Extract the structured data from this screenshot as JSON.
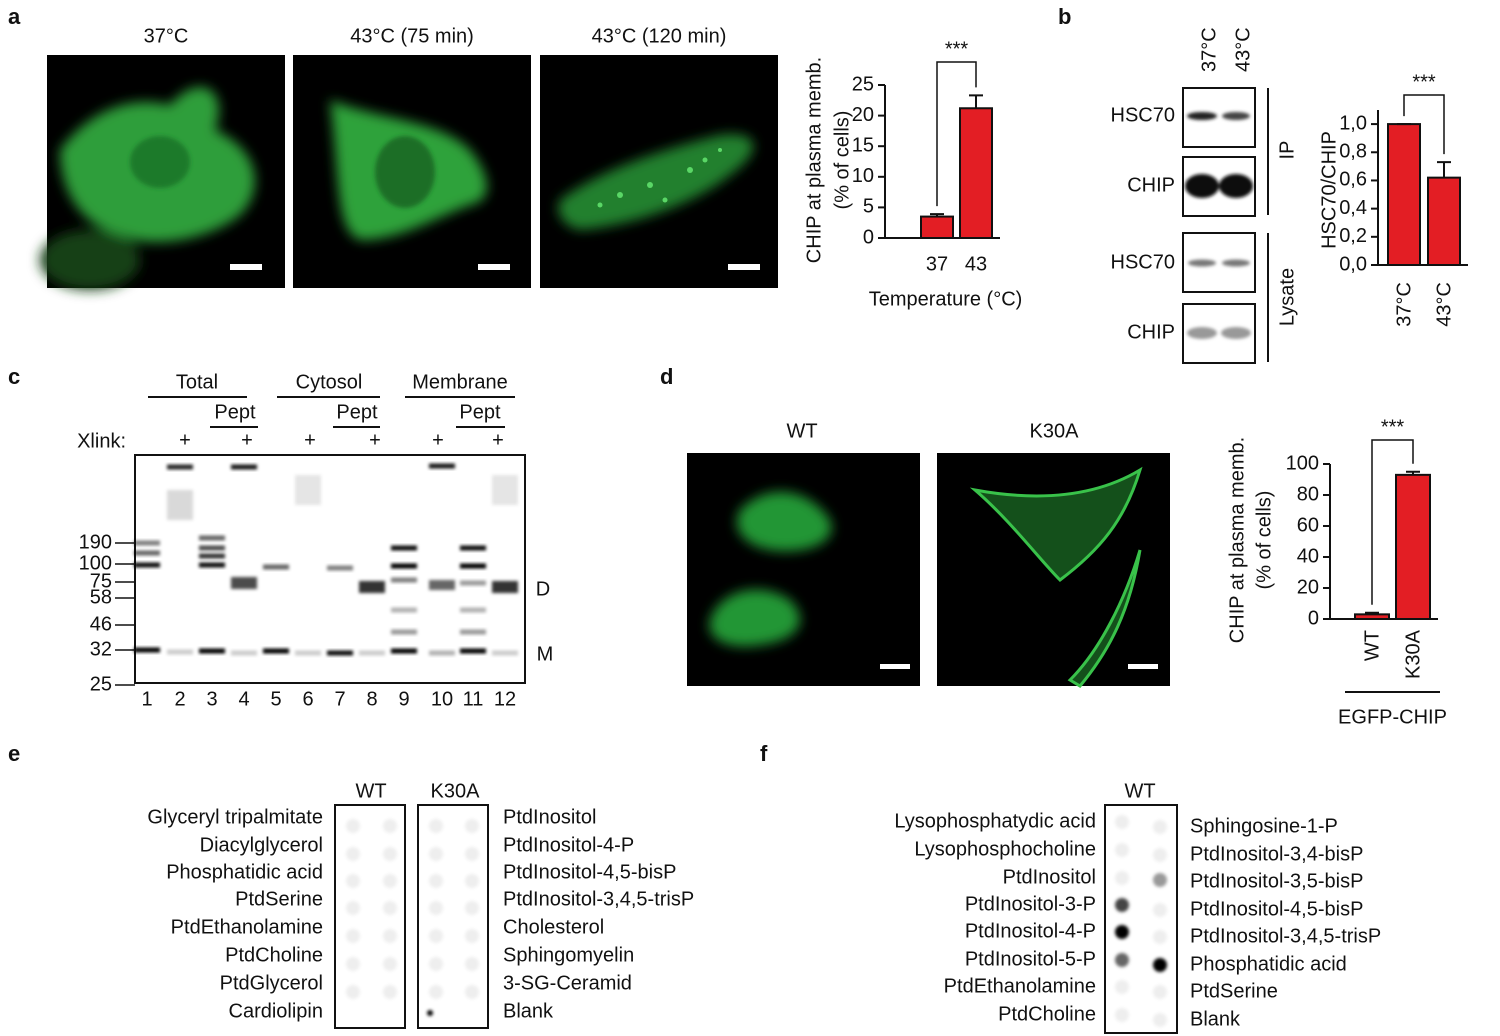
{
  "panel_labels": [
    "a",
    "b",
    "c",
    "d",
    "e",
    "f"
  ],
  "a": {
    "image_titles": [
      "37°C",
      "43°C (75 min)",
      "43°C (120 min)"
    ]
  },
  "b": {
    "lanes": [
      "37°C",
      "43°C"
    ],
    "blot_labels": [
      "HSC70",
      "CHIP",
      "HSC70",
      "CHIP"
    ],
    "groups": [
      "IP",
      "Lysate"
    ]
  },
  "c": {
    "groups": [
      "Total",
      "Cytosol",
      "Membrane"
    ],
    "sub_groups": [
      "Pept",
      "Pept",
      "Pept"
    ],
    "xlink_label": "Xlink:",
    "xlink_marks": [
      "+",
      "+",
      "+",
      "+",
      "+",
      "+"
    ],
    "markers": [
      190,
      100,
      75,
      58,
      46,
      32,
      25
    ],
    "lanes": [
      1,
      2,
      3,
      4,
      5,
      6,
      7,
      8,
      9,
      10,
      11,
      12
    ],
    "band_labels": [
      "D",
      "M"
    ]
  },
  "d": {
    "image_titles": [
      "WT",
      "K30A"
    ]
  },
  "e": {
    "columns": [
      "WT",
      "K30A"
    ],
    "left_labels": [
      "Glyceryl tripalmitate",
      "Diacylglycerol",
      "Phosphatidic acid",
      "PtdSerine",
      "PtdEthanolamine",
      "PtdCholine",
      "PtdGlycerol",
      "Cardiolipin"
    ],
    "right_labels": [
      "PtdInositol",
      "PtdInositol-4-P",
      "PtdInositol-4,5-bisP",
      "PtdInositol-3,4,5-trisP",
      "Cholesterol",
      "Sphingomyelin",
      "3-SG-Ceramid",
      "Blank"
    ]
  },
  "f": {
    "columns": [
      "WT"
    ],
    "left_labels": [
      "Lysophosphatydic acid",
      "Lysophosphocholine",
      "PtdInositol",
      "PtdInositol-3-P",
      "PtdInositol-4-P",
      "PtdInositol-5-P",
      "PtdEthanolamine",
      "PtdCholine"
    ],
    "right_labels": [
      "Sphingosine-1-P",
      "PtdInositol-3,4-bisP",
      "PtdInositol-3,5-bisP",
      "PtdInositol-4,5-bisP",
      "PtdInositol-3,4,5-trisP",
      "Phosphatidic acid",
      "PtdSerine",
      "Blank"
    ]
  },
  "chart_data": [
    {
      "type": "bar",
      "ylabel": [
        "CHIP at plasma memb.",
        "(% of cells)"
      ],
      "xlabel": "Temperature (°C)",
      "categories": [
        "37",
        "43"
      ],
      "values": [
        3.5,
        21.2
      ],
      "errors": [
        0.4,
        2.1
      ],
      "color": "#e31e24",
      "ylim": [
        0,
        25
      ],
      "yticks": [
        0,
        5,
        10,
        15,
        20,
        25
      ],
      "significance": "***"
    },
    {
      "type": "bar",
      "ylabel": [
        "HSC70/CHIP"
      ],
      "categories": [
        "37°C",
        "43°C"
      ],
      "values": [
        1.0,
        0.62
      ],
      "errors": [
        0,
        0.11
      ],
      "color": "#e31e24",
      "ylim": [
        0,
        1.1
      ],
      "yticks": [
        {
          "value": 0,
          "label": "0,0"
        },
        {
          "value": 0.2,
          "label": "0,2"
        },
        {
          "value": 0.4,
          "label": "0,4"
        },
        {
          "value": 0.6,
          "label": "0,6"
        },
        {
          "value": 0.8,
          "label": "0,8"
        },
        {
          "value": 1.0,
          "label": "1,0"
        }
      ],
      "significance": "***"
    },
    {
      "type": "bar",
      "ylabel": [
        "CHIP at plasma memb.",
        "(% of cells)"
      ],
      "group_label": "EGFP-CHIP",
      "categories": [
        "WT",
        "K30A"
      ],
      "values": [
        3,
        93
      ],
      "errors": [
        1,
        2
      ],
      "color": "#e31e24",
      "ylim": [
        0,
        100
      ],
      "yticks": [
        0,
        20,
        40,
        60,
        80,
        100
      ],
      "significance": "***"
    }
  ]
}
